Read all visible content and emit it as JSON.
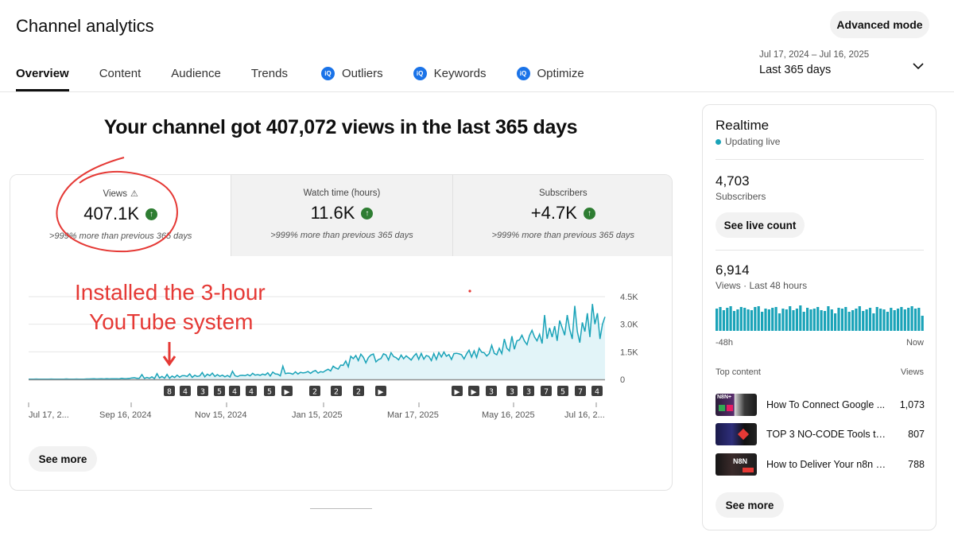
{
  "header": {
    "title": "Channel analytics",
    "advanced_mode_label": "Advanced mode",
    "date_range_dates": "Jul 17, 2024 – Jul 16, 2025",
    "date_range_label": "Last 365 days"
  },
  "tabs": [
    {
      "label": "Overview",
      "active": true,
      "vidiq": false
    },
    {
      "label": "Content",
      "active": false,
      "vidiq": false
    },
    {
      "label": "Audience",
      "active": false,
      "vidiq": false
    },
    {
      "label": "Trends",
      "active": false,
      "vidiq": false
    },
    {
      "label": "Outliers",
      "active": false,
      "vidiq": true
    },
    {
      "label": "Keywords",
      "active": false,
      "vidiq": true
    },
    {
      "label": "Optimize",
      "active": false,
      "vidiq": true
    }
  ],
  "main": {
    "headline": "Your channel got 407,072 views in the last 365 days",
    "metrics": [
      {
        "label": "Views",
        "value": "407.1K",
        "sub": ">999% more than previous 365 days",
        "warning": true
      },
      {
        "label": "Watch time (hours)",
        "value": "11.6K",
        "sub": ">999% more than previous 365 days",
        "warning": false
      },
      {
        "label": "Subscribers",
        "value": "+4.7K",
        "sub": ">999% more than previous 365 days",
        "warning": false
      }
    ],
    "annotation": {
      "line1": "Installed the 3-hour",
      "line2": "YouTube system"
    },
    "see_more_label": "See more"
  },
  "chart_data": {
    "type": "area",
    "series": [
      {
        "values": [
          15,
          15,
          15,
          18,
          15,
          15,
          15,
          15,
          15,
          18,
          15,
          15,
          15,
          15,
          15,
          20,
          15,
          15,
          15,
          18,
          15,
          15,
          15,
          20,
          22,
          25,
          30,
          20,
          25,
          30,
          22,
          40,
          25,
          30,
          35,
          30,
          25,
          60,
          40,
          45,
          50,
          80,
          90,
          60,
          60,
          260,
          50,
          110,
          60,
          140,
          40,
          310,
          80,
          160,
          60,
          270,
          60,
          180,
          100,
          230,
          120,
          200,
          200,
          160,
          300,
          110,
          220,
          160,
          190,
          370,
          140,
          280,
          200,
          340,
          160,
          260,
          170,
          230,
          140,
          210,
          130,
          440,
          200,
          150,
          210,
          220,
          200,
          260,
          190,
          330,
          230,
          260,
          220,
          290,
          240,
          360,
          180,
          400,
          300,
          280,
          190,
          720,
          310,
          340,
          330,
          280,
          410,
          290,
          380,
          350,
          370,
          430,
          330,
          430,
          480,
          340,
          420,
          390,
          480,
          550,
          460,
          720,
          620,
          560,
          780,
          760,
          1000,
          690,
          1260,
          1130,
          1300,
          1020,
          1370,
          1200,
          900,
          1190,
          1330,
          1380,
          950,
          1080,
          1130,
          1390,
          1330,
          1050,
          1450,
          1240,
          1180,
          1060,
          1320,
          1120,
          1280,
          1170,
          1050,
          1260,
          1400,
          1090,
          1410,
          1100,
          1300,
          1250,
          1020,
          1400,
          1080,
          1460,
          1220,
          1490,
          1260,
          1350,
          1080,
          1400,
          1420,
          1390,
          1340,
          1110,
          1390,
          1590,
          1210,
          1550,
          1190,
          1690,
          1480,
          1450,
          1270,
          1400,
          1850,
          1420,
          1340,
          1690,
          1400,
          2200,
          1700,
          1550,
          2350,
          1640,
          2100,
          2150,
          2400,
          2090,
          1890,
          2380,
          2670,
          2300,
          2100,
          2450,
          1950,
          3500,
          2210,
          2800,
          2300,
          2900,
          2100,
          3200,
          2800,
          2400,
          3500,
          2700,
          2200,
          4000,
          2600,
          2000,
          3100,
          2600,
          3600,
          2300,
          4100,
          3000,
          3600,
          2200,
          3000,
          3400
        ]
      }
    ],
    "ylim": [
      0,
      4500
    ],
    "yticks": [
      "4.5K",
      "3.0K",
      "1.5K",
      "0"
    ],
    "ytick_values": [
      4500,
      3000,
      1500,
      0
    ],
    "xticks": [
      "Jul 17, 2...",
      "Sep 16, 2024",
      "Nov 15, 2024",
      "Jan 15, 2025",
      "Mar 17, 2025",
      "May 16, 2025",
      "Jul 16, 2..."
    ],
    "grid": true,
    "upload_markers": [
      "8",
      "4",
      "3",
      "5",
      "4",
      "4",
      "5",
      "▶",
      "2",
      "2",
      "2",
      "▶",
      "▶",
      "▶",
      "3",
      "3",
      "3",
      "7",
      "5",
      "7",
      "4"
    ]
  },
  "realtime": {
    "title": "Realtime",
    "status": "Updating live",
    "subscribers_value": "4,703",
    "subscribers_label": "Subscribers",
    "see_live_count_label": "See live count",
    "views_value": "6,914",
    "views_label": "Views · Last 48 hours",
    "bars": [
      28,
      30,
      26,
      29,
      31,
      25,
      27,
      30,
      29,
      27,
      26,
      30,
      31,
      24,
      28,
      27,
      29,
      30,
      22,
      28,
      27,
      31,
      26,
      28,
      32,
      24,
      29,
      27,
      28,
      30,
      26,
      25,
      31,
      27,
      22,
      29,
      28,
      30,
      24,
      26,
      28,
      31,
      25,
      27,
      29,
      22,
      30,
      28,
      27,
      24,
      29,
      26,
      28,
      30,
      27,
      29,
      31,
      28,
      29,
      19
    ],
    "axis_left": "-48h",
    "axis_right": "Now",
    "top_content_label": "Top content",
    "views_col_label": "Views",
    "top_content": [
      {
        "title": "How To Connect Google ...",
        "views": "1,073",
        "thumb_text": "N8N+"
      },
      {
        "title": "TOP 3 NO-CODE Tools to S...",
        "views": "807",
        "thumb_text": ""
      },
      {
        "title": "How to Deliver Your n8n Pr...",
        "views": "788",
        "thumb_text": "N8N"
      }
    ],
    "see_more_label": "See more"
  },
  "colors": {
    "accent_line": "#1aa3b8",
    "area_fill": "#e2f4f8",
    "annotation_red": "#e53935",
    "up_green": "#2e7d32",
    "vidiq_blue": "#1a73e8"
  }
}
